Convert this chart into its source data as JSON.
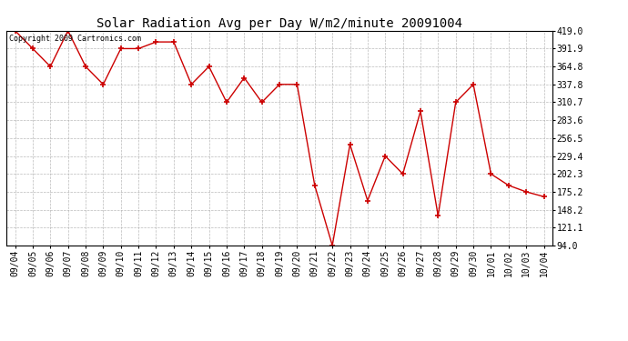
{
  "title": "Solar Radiation Avg per Day W/m2/minute 20091004",
  "copyright": "Copyright 2009 Cartronics.com",
  "dates": [
    "09/04",
    "09/05",
    "09/06",
    "09/07",
    "09/08",
    "09/09",
    "09/10",
    "09/11",
    "09/12",
    "09/13",
    "09/14",
    "09/15",
    "09/16",
    "09/17",
    "09/18",
    "09/19",
    "09/20",
    "09/21",
    "09/22",
    "09/23",
    "09/24",
    "09/25",
    "09/26",
    "09/27",
    "09/28",
    "09/29",
    "09/30",
    "10/01",
    "10/02",
    "10/03",
    "10/04"
  ],
  "values": [
    419.0,
    391.9,
    364.8,
    419.0,
    364.8,
    337.8,
    391.9,
    391.9,
    402.0,
    402.0,
    337.8,
    364.8,
    310.7,
    347.8,
    310.7,
    337.8,
    337.8,
    185.0,
    94.0,
    247.0,
    162.0,
    229.4,
    202.3,
    297.0,
    139.0,
    310.7,
    337.8,
    202.3,
    185.0,
    175.2,
    168.0
  ],
  "ylim": [
    94.0,
    419.0
  ],
  "yticks": [
    94.0,
    121.1,
    148.2,
    175.2,
    202.3,
    229.4,
    256.5,
    283.6,
    310.7,
    337.8,
    364.8,
    391.9,
    419.0
  ],
  "line_color": "#cc0000",
  "marker_color": "#cc0000",
  "bg_color": "#ffffff",
  "grid_color": "#aaaaaa",
  "title_fontsize": 10,
  "axis_fontsize": 7,
  "copyright_fontsize": 6
}
